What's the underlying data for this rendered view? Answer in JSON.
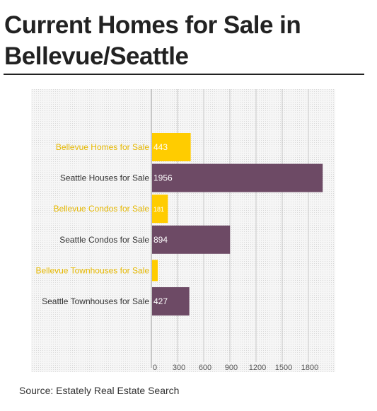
{
  "title": "Current Homes for Sale in Bellevue/Seattle",
  "source": "Source:  Estately Real Estate Search",
  "colors": {
    "bellevue": "#ffcc00",
    "seattle": "#6d4a65",
    "background": "#f4f4f4",
    "label_bellevue": "#e6b800",
    "label_seattle": "#333333"
  },
  "chart_data": {
    "type": "bar",
    "orientation": "horizontal",
    "categories": [
      "Bellevue Homes for Sale",
      "Seattle Houses for Sale",
      "Bellevue Condos for Sale",
      "Seattle Condos for Sale",
      "Bellevue Townhouses for Sale",
      "Seattle Townhouses for Sale"
    ],
    "values": [
      443,
      1956,
      181,
      894,
      null,
      427
    ],
    "value_labels": [
      "443",
      "1956",
      "181",
      "894",
      "",
      "427"
    ],
    "bar_colors": [
      "#ffcc00",
      "#6d4a65",
      "#ffcc00",
      "#6d4a65",
      "#ffcc00",
      "#6d4a65"
    ],
    "label_colors": [
      "#e6b800",
      "#333333",
      "#e6b800",
      "#333333",
      "#e6b800",
      "#333333"
    ],
    "xticks": [
      "0",
      "300",
      "600",
      "900",
      "1200",
      "1500",
      "1800"
    ],
    "xlim": [
      0,
      2000
    ],
    "grid": true
  }
}
